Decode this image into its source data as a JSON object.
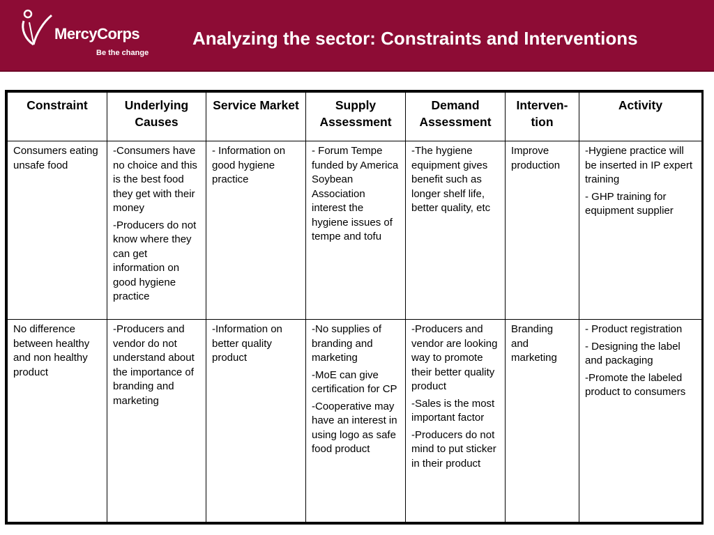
{
  "header": {
    "logo_name": "MercyCorps",
    "logo_tagline": "Be the change",
    "title": "Analyzing the sector: Constraints and Interventions"
  },
  "colors": {
    "banner": "#8d0c35",
    "text": "#000000",
    "banner_text": "#ffffff"
  },
  "table": {
    "columns": [
      "Constraint",
      "Underlying Causes",
      "Service Market",
      "Supply Assessment",
      "Demand Assessment",
      "Interven-tion",
      "Activity"
    ],
    "rows": [
      [
        [
          "Consumers eating unsafe food"
        ],
        [
          "-Consumers have no choice and this is the best food they get  with their money",
          "-Producers do not know where they can get information on good hygiene practice"
        ],
        [
          "- Information on good hygiene practice"
        ],
        [
          "- Forum Tempe funded by America Soybean Association interest the hygiene issues of tempe and tofu"
        ],
        [
          "-The hygiene equipment gives benefit such as longer shelf life, better quality, etc"
        ],
        [
          "Improve production"
        ],
        [
          "-Hygiene practice will be inserted in IP expert training",
          "- GHP training for equipment supplier"
        ]
      ],
      [
        [
          "No difference between healthy and non healthy product"
        ],
        [
          "-Producers and vendor do not understand about the importance of branding and marketing"
        ],
        [
          "-Information on better quality product"
        ],
        [
          "-No supplies of branding and marketing",
          "-MoE can give certification for CP",
          "-Cooperative may have an interest in using logo as safe food product"
        ],
        [
          "-Producers and vendor are looking way to promote their better quality product",
          "-Sales is the most important factor",
          "-Producers do not mind to put sticker in their product"
        ],
        [
          "Branding and marketing"
        ],
        [
          "- Product registration",
          "- Designing the label and packaging",
          "-Promote the labeled product to consumers"
        ]
      ]
    ]
  }
}
